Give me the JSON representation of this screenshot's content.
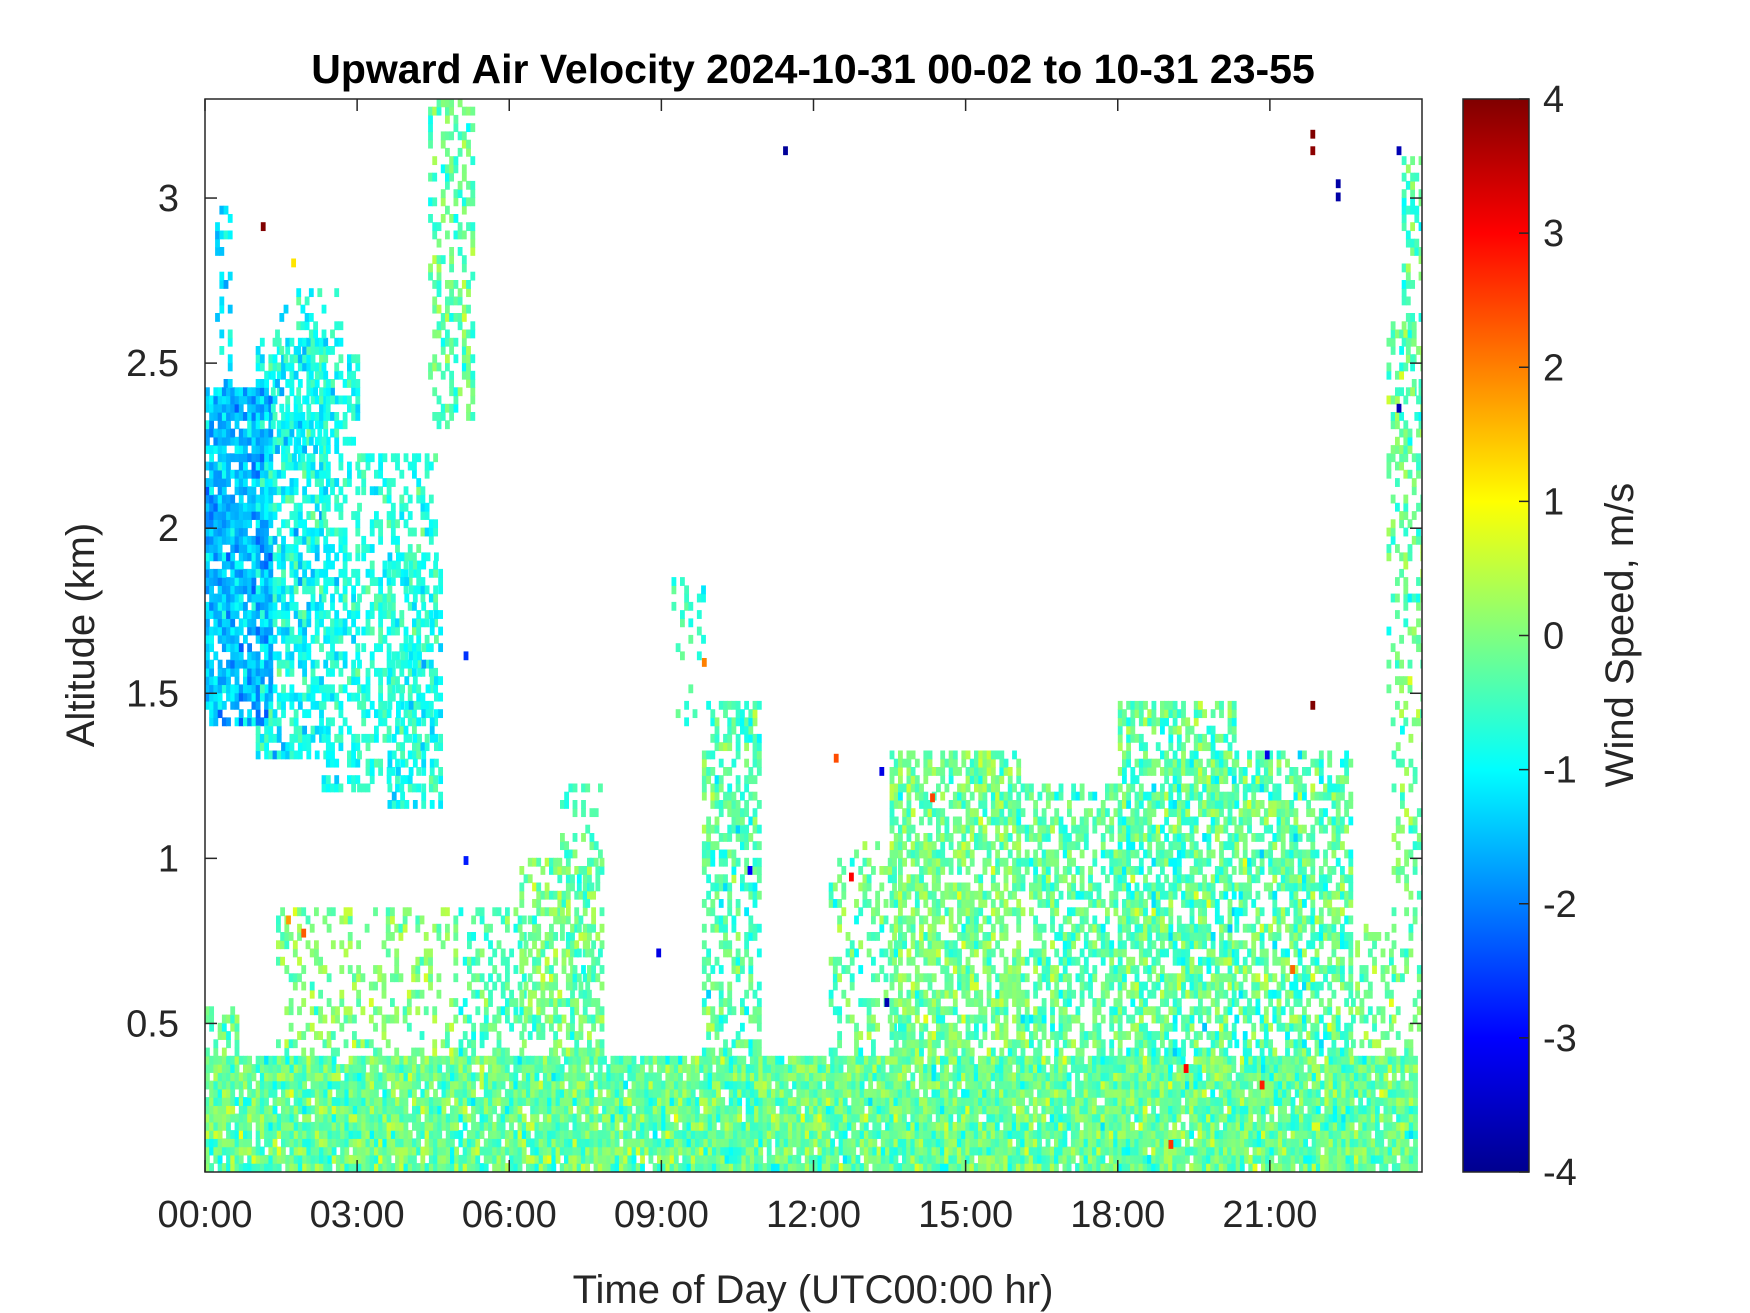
{
  "chart_data": {
    "type": "heatmap",
    "title": "Upward Air Velocity 2024-10-31 00-02 to 10-31 23-55",
    "xlabel": "Time of Day (UTC00:00 hr)",
    "ylabel": "Altitude (km)",
    "xlim": [
      0,
      24
    ],
    "ylim": [
      0.05,
      3.3
    ],
    "x_ticks": [
      {
        "value": 0,
        "label": "00:00"
      },
      {
        "value": 3,
        "label": "03:00"
      },
      {
        "value": 6,
        "label": "06:00"
      },
      {
        "value": 9,
        "label": "09:00"
      },
      {
        "value": 12,
        "label": "12:00"
      },
      {
        "value": 15,
        "label": "15:00"
      },
      {
        "value": 18,
        "label": "18:00"
      },
      {
        "value": 21,
        "label": "21:00"
      }
    ],
    "y_ticks": [
      {
        "value": 0.5,
        "label": "0.5"
      },
      {
        "value": 1,
        "label": "1"
      },
      {
        "value": 1.5,
        "label": "1.5"
      },
      {
        "value": 2,
        "label": "2"
      },
      {
        "value": 2.5,
        "label": "2.5"
      },
      {
        "value": 3,
        "label": "3"
      }
    ],
    "colorbar": {
      "label": "Wind Speed, m/s",
      "range": [
        -4,
        4
      ],
      "colormap": "jet",
      "ticks": [
        {
          "value": 4,
          "label": "4"
        },
        {
          "value": 3,
          "label": "3"
        },
        {
          "value": 2,
          "label": "2"
        },
        {
          "value": 1,
          "label": "1"
        },
        {
          "value": 0,
          "label": "0"
        },
        {
          "value": -1,
          "label": "-1"
        },
        {
          "value": -2,
          "label": "-2"
        },
        {
          "value": -3,
          "label": "-3"
        },
        {
          "value": -4,
          "label": "-4"
        }
      ]
    },
    "grid": false,
    "regions": [
      {
        "t_start": 0.0,
        "t_end": 23.9,
        "alt_min": 0.05,
        "alt_max": 0.4,
        "density": 0.92,
        "mean": -0.2,
        "spread": 0.55
      },
      {
        "t_start": 0.0,
        "t_end": 0.6,
        "alt_min": 0.4,
        "alt_max": 0.55,
        "density": 0.5,
        "mean": -0.3,
        "spread": 0.5
      },
      {
        "t_start": 0.0,
        "t_end": 1.3,
        "alt_min": 1.4,
        "alt_max": 2.4,
        "density": 0.82,
        "mean": -1.5,
        "spread": 0.5
      },
      {
        "t_start": 0.2,
        "t_end": 0.5,
        "alt_min": 2.4,
        "alt_max": 2.95,
        "density": 0.3,
        "mean": -1.2,
        "spread": 0.4
      },
      {
        "t_start": 1.0,
        "t_end": 2.4,
        "alt_min": 1.3,
        "alt_max": 2.55,
        "density": 0.62,
        "mean": -0.9,
        "spread": 0.5
      },
      {
        "t_start": 1.3,
        "t_end": 2.7,
        "alt_min": 2.2,
        "alt_max": 2.7,
        "density": 0.3,
        "mean": -1.0,
        "spread": 0.5
      },
      {
        "t_start": 2.3,
        "t_end": 3.0,
        "alt_min": 1.2,
        "alt_max": 2.5,
        "density": 0.45,
        "mean": -0.8,
        "spread": 0.4
      },
      {
        "t_start": 3.0,
        "t_end": 4.5,
        "alt_min": 1.2,
        "alt_max": 2.2,
        "density": 0.4,
        "mean": -0.7,
        "spread": 0.4
      },
      {
        "t_start": 3.6,
        "t_end": 4.6,
        "alt_min": 1.15,
        "alt_max": 1.9,
        "density": 0.45,
        "mean": -0.9,
        "spread": 0.4
      },
      {
        "t_start": 4.4,
        "t_end": 5.3,
        "alt_min": 2.3,
        "alt_max": 3.3,
        "density": 0.38,
        "mean": -0.3,
        "spread": 0.5
      },
      {
        "t_start": 1.4,
        "t_end": 4.9,
        "alt_min": 0.4,
        "alt_max": 0.85,
        "density": 0.3,
        "mean": 0.0,
        "spread": 0.5
      },
      {
        "t_start": 5.0,
        "t_end": 6.3,
        "alt_min": 0.4,
        "alt_max": 0.85,
        "density": 0.3,
        "mean": -0.4,
        "spread": 0.5
      },
      {
        "t_start": 6.2,
        "t_end": 7.8,
        "alt_min": 0.4,
        "alt_max": 1.0,
        "density": 0.5,
        "mean": -0.1,
        "spread": 0.5
      },
      {
        "t_start": 7.0,
        "t_end": 7.8,
        "alt_min": 0.6,
        "alt_max": 1.2,
        "density": 0.3,
        "mean": -0.4,
        "spread": 0.4
      },
      {
        "t_start": 9.8,
        "t_end": 10.9,
        "alt_min": 0.4,
        "alt_max": 1.45,
        "density": 0.48,
        "mean": -0.4,
        "spread": 0.5
      },
      {
        "t_start": 9.2,
        "t_end": 9.8,
        "alt_min": 1.4,
        "alt_max": 1.85,
        "density": 0.15,
        "mean": -0.6,
        "spread": 0.4
      },
      {
        "t_start": 12.3,
        "t_end": 13.6,
        "alt_min": 0.4,
        "alt_max": 1.05,
        "density": 0.3,
        "mean": -0.3,
        "spread": 0.5
      },
      {
        "t_start": 13.5,
        "t_end": 16.0,
        "alt_min": 0.4,
        "alt_max": 1.32,
        "density": 0.66,
        "mean": -0.1,
        "spread": 0.5
      },
      {
        "t_start": 16.0,
        "t_end": 18.0,
        "alt_min": 0.4,
        "alt_max": 1.2,
        "density": 0.52,
        "mean": -0.3,
        "spread": 0.5
      },
      {
        "t_start": 18.0,
        "t_end": 20.3,
        "alt_min": 0.4,
        "alt_max": 1.45,
        "density": 0.68,
        "mean": -0.3,
        "spread": 0.6
      },
      {
        "t_start": 20.3,
        "t_end": 22.6,
        "alt_min": 0.4,
        "alt_max": 1.3,
        "density": 0.58,
        "mean": -0.3,
        "spread": 0.6
      },
      {
        "t_start": 22.6,
        "t_end": 23.4,
        "alt_min": 0.3,
        "alt_max": 0.8,
        "density": 0.35,
        "mean": -0.1,
        "spread": 0.5
      },
      {
        "t_start": 23.3,
        "t_end": 24.0,
        "alt_min": 1.4,
        "alt_max": 2.6,
        "density": 0.35,
        "mean": -0.2,
        "spread": 0.5
      },
      {
        "t_start": 23.4,
        "t_end": 24.0,
        "alt_min": 0.4,
        "alt_max": 1.4,
        "density": 0.3,
        "mean": -0.2,
        "spread": 0.5
      },
      {
        "t_start": 23.6,
        "t_end": 24.0,
        "alt_min": 2.3,
        "alt_max": 3.1,
        "density": 0.45,
        "mean": -0.4,
        "spread": 0.5
      }
    ],
    "points": [
      {
        "t": 1.1,
        "alt": 2.9,
        "value": 4.0
      },
      {
        "t": 11.4,
        "alt": 3.13,
        "value": -3.8
      },
      {
        "t": 21.8,
        "alt": 3.18,
        "value": 4.0
      },
      {
        "t": 21.8,
        "alt": 3.13,
        "value": 3.9
      },
      {
        "t": 22.3,
        "alt": 3.03,
        "value": -3.7
      },
      {
        "t": 22.3,
        "alt": 2.99,
        "value": -3.7
      },
      {
        "t": 23.5,
        "alt": 3.13,
        "value": -3.6
      },
      {
        "t": 23.5,
        "alt": 2.35,
        "value": -3.6
      },
      {
        "t": 21.8,
        "alt": 1.45,
        "value": 4.0
      },
      {
        "t": 12.4,
        "alt": 1.29,
        "value": 2.4
      },
      {
        "t": 12.7,
        "alt": 0.93,
        "value": 3.0
      },
      {
        "t": 13.3,
        "alt": 1.25,
        "value": -3.2
      },
      {
        "t": 13.4,
        "alt": 0.55,
        "value": -3.6
      },
      {
        "t": 9.8,
        "alt": 1.58,
        "value": 2.0
      },
      {
        "t": 1.9,
        "alt": 0.76,
        "value": 2.3
      },
      {
        "t": 1.6,
        "alt": 0.8,
        "value": 1.8
      },
      {
        "t": 1.7,
        "alt": 2.79,
        "value": 1.2
      },
      {
        "t": 5.1,
        "alt": 1.6,
        "value": -2.6
      },
      {
        "t": 5.1,
        "alt": 0.98,
        "value": -2.8
      },
      {
        "t": 8.9,
        "alt": 0.7,
        "value": -3.2
      },
      {
        "t": 10.7,
        "alt": 0.95,
        "value": -3.0
      },
      {
        "t": 20.9,
        "alt": 1.3,
        "value": -3.2
      },
      {
        "t": 14.3,
        "alt": 1.17,
        "value": 2.5
      },
      {
        "t": 19.3,
        "alt": 0.35,
        "value": 3.0
      },
      {
        "t": 20.8,
        "alt": 0.3,
        "value": 2.8
      },
      {
        "t": 19.0,
        "alt": 0.12,
        "value": 2.6
      },
      {
        "t": 21.4,
        "alt": 0.65,
        "value": 2.2
      }
    ]
  }
}
